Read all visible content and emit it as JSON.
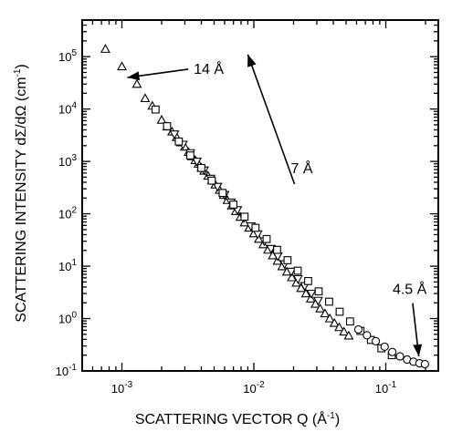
{
  "chart_data": {
    "type": "scatter",
    "xscale": "log",
    "yscale": "log",
    "xlabel_text": "SCATTERING VECTOR Q (Å",
    "xlabel_sup": "-1",
    "xlabel_close": ")",
    "ylabel_text": "SCATTERING INTENSITY dΣ/dΩ (cm",
    "ylabel_sup": "-1",
    "ylabel_close": ")",
    "xlim": [
      0.0005,
      0.25
    ],
    "ylim": [
      0.1,
      500000
    ],
    "grid": false,
    "x_ticks": [
      {
        "value": 0.001,
        "base": "10",
        "exp": "-3"
      },
      {
        "value": 0.01,
        "base": "10",
        "exp": "-2"
      },
      {
        "value": 0.1,
        "base": "10",
        "exp": "-1"
      }
    ],
    "y_ticks": [
      {
        "value": 0.1,
        "base": "10",
        "exp": "-1"
      },
      {
        "value": 1,
        "base": "10",
        "exp": "0"
      },
      {
        "value": 10,
        "base": "10",
        "exp": "1"
      },
      {
        "value": 100,
        "base": "10",
        "exp": "2"
      },
      {
        "value": 1000,
        "base": "10",
        "exp": "3"
      },
      {
        "value": 10000,
        "base": "10",
        "exp": "4"
      },
      {
        "value": 100000,
        "base": "10",
        "exp": "5"
      }
    ],
    "series": [
      {
        "marker": "triangle-up",
        "x": [
          0.00075,
          0.001,
          0.0013,
          0.0015,
          0.0017,
          0.002,
          0.0022,
          0.0024,
          0.0026,
          0.0028,
          0.003,
          0.0032,
          0.0034,
          0.0036,
          0.0038,
          0.004,
          0.0042,
          0.0045,
          0.0048,
          0.0051,
          0.0055,
          0.0059,
          0.0063,
          0.0068,
          0.0073,
          0.0079,
          0.0085,
          0.0092,
          0.01,
          0.0109,
          0.0118,
          0.0128,
          0.0139,
          0.0151,
          0.0164,
          0.0178,
          0.0194,
          0.021,
          0.0228,
          0.0248,
          0.027,
          0.0293,
          0.0318,
          0.0346,
          0.0376,
          0.0408,
          0.0444,
          0.0482,
          0.0524
        ],
        "y": [
          140000,
          65000,
          30000,
          16000,
          11500,
          6200,
          4600,
          3700,
          2900,
          2300,
          1900,
          1500,
          1250,
          1050,
          900,
          760,
          660,
          530,
          440,
          360,
          285,
          228,
          182,
          143,
          112,
          87,
          68,
          54,
          42,
          33,
          26,
          20.5,
          16,
          12.6,
          9.9,
          7.8,
          6.1,
          4.8,
          3.8,
          3.0,
          2.4,
          1.9,
          1.55,
          1.25,
          1.0,
          0.82,
          0.68,
          0.56,
          0.47
        ]
      },
      {
        "marker": "triangle-down",
        "x": [
          0.0025,
          0.0029,
          0.0033,
          0.0037,
          0.0042,
          0.0047,
          0.0053,
          0.006,
          0.0067,
          0.0075,
          0.0084,
          0.0095,
          0.0107,
          0.012,
          0.0135,
          0.0152,
          0.0171,
          0.0192,
          0.0216,
          0.0243,
          0.0273,
          0.0307
        ],
        "y": [
          3300,
          2100,
          1450,
          1000,
          680,
          470,
          330,
          230,
          165,
          118,
          84,
          58,
          41,
          30,
          21.5,
          15.5,
          11,
          7.9,
          5.7,
          4.2,
          3.0,
          2.2
        ]
      },
      {
        "marker": "square",
        "x": [
          0.0018,
          0.0022,
          0.0027,
          0.0033,
          0.004,
          0.0048,
          0.0058,
          0.007,
          0.0085,
          0.0103,
          0.0125,
          0.015,
          0.018,
          0.0215,
          0.0258,
          0.031,
          0.0372,
          0.0447,
          0.0536,
          0.0643,
          0.0772,
          0.0926,
          0.111
        ],
        "y": [
          9800,
          4700,
          2400,
          1300,
          750,
          430,
          250,
          150,
          88,
          54,
          33,
          20.5,
          13,
          8.2,
          5.2,
          3.3,
          2.1,
          1.35,
          0.88,
          0.58,
          0.39,
          0.27,
          0.2
        ]
      },
      {
        "marker": "circle",
        "x": [
          0.062,
          0.072,
          0.084,
          0.098,
          0.112,
          0.128,
          0.145,
          0.162,
          0.18,
          0.198
        ],
        "y": [
          0.62,
          0.48,
          0.37,
          0.29,
          0.23,
          0.19,
          0.165,
          0.15,
          0.14,
          0.135
        ]
      }
    ],
    "annotations": [
      {
        "text": "14 Å",
        "point": [
          0.0011,
          40000
        ],
        "label_anchor": [
          0.0035,
          60000
        ]
      },
      {
        "text": "7 Å",
        "point": [
          0.009,
          110000
        ],
        "label_anchor": [
          0.021,
          550
        ]
      },
      {
        "text": "4.5 Å",
        "point": [
          0.178,
          0.19
        ],
        "label_anchor": [
          0.15,
          2.5
        ]
      }
    ]
  }
}
